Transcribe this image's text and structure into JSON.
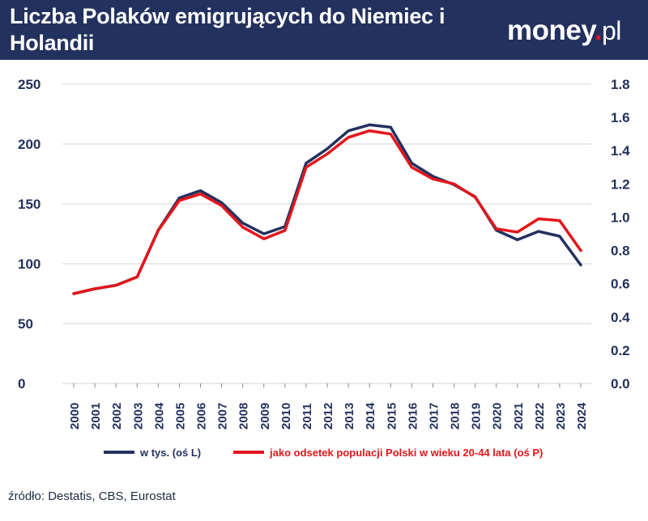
{
  "header": {
    "title": "Liczba Polaków emigrujących do Niemiec i Holandii",
    "logo_main": "money",
    "logo_dot": ".",
    "logo_tld": "pl",
    "background_color": "#23315f"
  },
  "footer": {
    "source": "źródło: Destatis, CBS, Eurostat"
  },
  "chart_data": {
    "type": "line",
    "title": "Liczba Polaków emigrujących do Niemiec i Holandii",
    "grid": true,
    "legend_position": "bottom",
    "x": [
      "2000",
      "2001",
      "2002",
      "2003",
      "2004",
      "2005",
      "2006",
      "2007",
      "2008",
      "2009",
      "2010",
      "2011",
      "2012",
      "2013",
      "2014",
      "2015",
      "2016",
      "2017",
      "2018",
      "2019",
      "2020",
      "2021",
      "2022",
      "2023",
      "2024"
    ],
    "y_left": {
      "ylim": [
        0,
        250
      ],
      "ticks": [
        "0",
        "50",
        "100",
        "150",
        "200",
        "250"
      ]
    },
    "y_right": {
      "ylim": [
        0,
        1.8
      ],
      "ticks": [
        "0.0",
        "0.2",
        "0.4",
        "0.6",
        "0.8",
        "1.0",
        "1.2",
        "1.4",
        "1.6",
        "1.8"
      ]
    },
    "series": [
      {
        "name": "w tys. (oś L)",
        "axis": "left",
        "color": "#23315f",
        "values": [
          75,
          79,
          82,
          89,
          128,
          155,
          161,
          151,
          134,
          125,
          131,
          184,
          196,
          211,
          216,
          214,
          184,
          173,
          166,
          156,
          128,
          120,
          127,
          123,
          99
        ]
      },
      {
        "name": "jako odsetek populacji Polski w wieku 20-44 lata (oś P)",
        "axis": "right",
        "color": "#e3161c",
        "values": [
          0.54,
          0.57,
          0.59,
          0.64,
          0.92,
          1.1,
          1.14,
          1.07,
          0.94,
          0.87,
          0.92,
          1.3,
          1.38,
          1.48,
          1.52,
          1.5,
          1.3,
          1.23,
          1.2,
          1.12,
          0.93,
          0.91,
          0.99,
          0.98,
          0.8
        ]
      }
    ]
  }
}
